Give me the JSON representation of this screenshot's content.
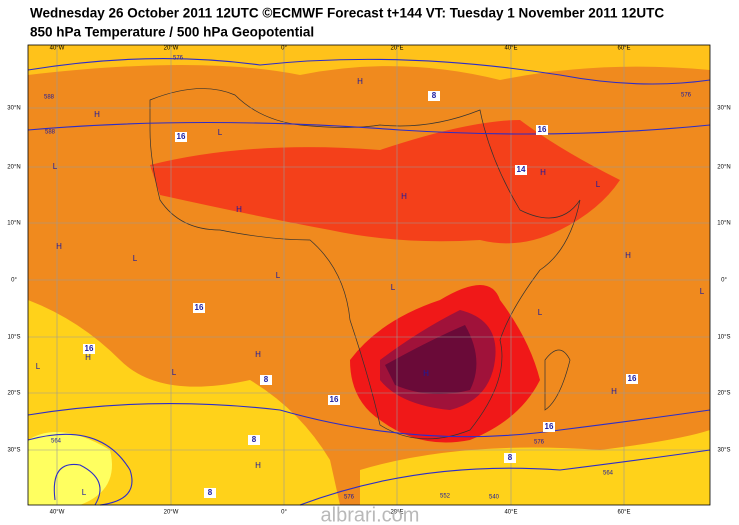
{
  "header": {
    "title": "Wednesday 26 October 2011 12UTC ©ECMWF Forecast t+144 VT: Tuesday 1 November 2011 12UTC",
    "subtitle": "850 hPa Temperature / 500 hPa Geopotential"
  },
  "axes": {
    "lon_labels": [
      "40°W",
      "20°W",
      "0°",
      "20°E",
      "40°E",
      "60°E"
    ],
    "lat_labels": [
      "30°N",
      "20°N",
      "10°N",
      "0°",
      "10°S",
      "20°S",
      "30°S"
    ]
  },
  "temperature_labels": [
    "16",
    "16",
    "16",
    "16",
    "16",
    "16",
    "16",
    "14",
    "8",
    "8",
    "8",
    "8",
    "8"
  ],
  "geopotential_labels": [
    "576",
    "576",
    "576",
    "576",
    "588",
    "588",
    "564",
    "564",
    "552",
    "540"
  ],
  "pressure_centers": [
    "H",
    "H",
    "H",
    "H",
    "H",
    "H",
    "H",
    "H",
    "H",
    "H",
    "H",
    "H",
    "L",
    "L",
    "L",
    "L",
    "L",
    "L",
    "L",
    "L",
    "L",
    "L",
    "L"
  ],
  "watermark": "albrari.com"
}
